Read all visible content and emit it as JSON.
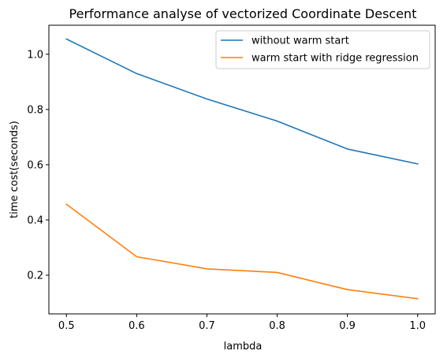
{
  "chart_data": {
    "type": "line",
    "title": "Performance analyse of vectorized Coordinate Descent",
    "xlabel": "lambda",
    "ylabel": "time cost(seconds)",
    "x": [
      0.5,
      0.6,
      0.7,
      0.8,
      0.9,
      1.0
    ],
    "xlim": [
      0.475,
      1.025
    ],
    "ylim": [
      0.06,
      1.105
    ],
    "xticks": [
      "0.5",
      "0.6",
      "0.7",
      "0.8",
      "0.9",
      "1.0"
    ],
    "yticks": [
      "0.2",
      "0.4",
      "0.6",
      "0.8",
      "1.0"
    ],
    "grid": false,
    "legend_position": "top-right",
    "series": [
      {
        "name": "without warm start",
        "color": "#1f77b4",
        "values": [
          1.055,
          0.93,
          0.838,
          0.758,
          0.657,
          0.603
        ]
      },
      {
        "name": "warm start with ridge regression",
        "color": "#ff7f0e",
        "values": [
          0.457,
          0.267,
          0.223,
          0.21,
          0.148,
          0.115
        ]
      }
    ]
  }
}
